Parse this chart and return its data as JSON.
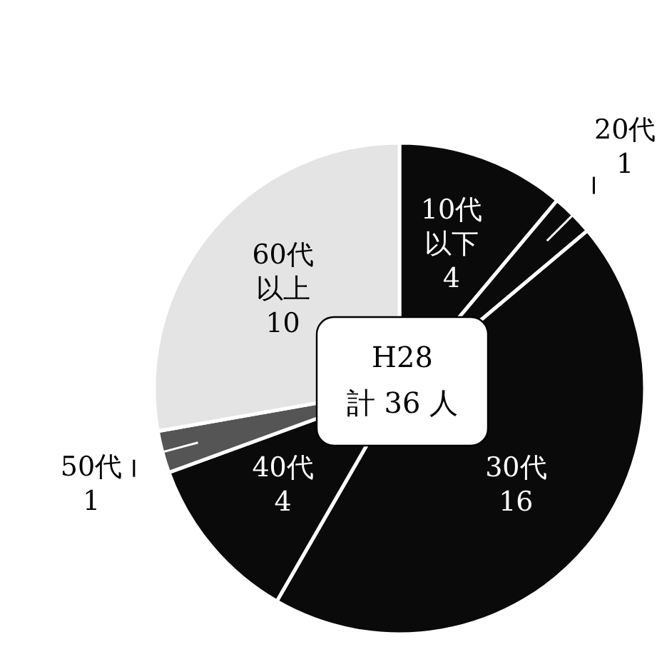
{
  "chart_data": {
    "type": "pie",
    "categories": [
      "10代以下",
      "20代",
      "30代",
      "40代",
      "50代",
      "60代以上"
    ],
    "values": [
      4,
      1,
      16,
      4,
      1,
      10
    ],
    "colors": [
      "#0a0a0a",
      "#0a0a0a",
      "#0a0a0a",
      "#0a0a0a",
      "#555555",
      "#e4e4e4"
    ],
    "data_labels": true,
    "annotations": [
      "H28",
      "計 36 人"
    ]
  }
}
